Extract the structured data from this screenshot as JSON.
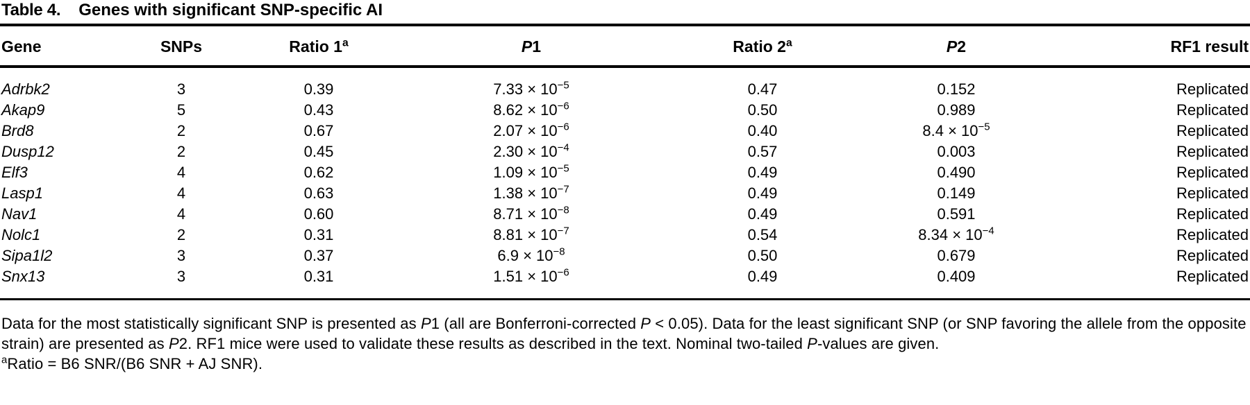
{
  "page": {
    "background": "#ffffff",
    "text_color": "#000000",
    "rule_color": "#000000"
  },
  "caption": {
    "label": "Table 4.",
    "title": "Genes with significant SNP-specific AI"
  },
  "table": {
    "headers": {
      "gene": "Gene",
      "snps": "SNPs",
      "ratio1": {
        "text": "Ratio 1",
        "sup": "a"
      },
      "p1": {
        "italic": "P",
        "rest": "1"
      },
      "ratio2": {
        "text": "Ratio 2",
        "sup": "a"
      },
      "p2": {
        "italic": "P",
        "rest": "2"
      },
      "rf1": "RF1 result"
    },
    "rows": [
      {
        "gene": "Adrbk2",
        "snps": "3",
        "ratio1": "0.39",
        "p1": {
          "text": "7.33 × 10",
          "exp": "−5"
        },
        "ratio2": "0.47",
        "p2": {
          "text": "0.152",
          "exp": ""
        },
        "rf1": "Replicated"
      },
      {
        "gene": "Akap9",
        "snps": "5",
        "ratio1": "0.43",
        "p1": {
          "text": "8.62 × 10",
          "exp": "−6"
        },
        "ratio2": "0.50",
        "p2": {
          "text": "0.989",
          "exp": ""
        },
        "rf1": "Replicated"
      },
      {
        "gene": "Brd8",
        "snps": "2",
        "ratio1": "0.67",
        "p1": {
          "text": "2.07 × 10",
          "exp": "−6"
        },
        "ratio2": "0.40",
        "p2": {
          "text": "8.4 × 10",
          "exp": "−5"
        },
        "rf1": "Replicated"
      },
      {
        "gene": "Dusp12",
        "snps": "2",
        "ratio1": "0.45",
        "p1": {
          "text": "2.30 × 10",
          "exp": "−4"
        },
        "ratio2": "0.57",
        "p2": {
          "text": "0.003",
          "exp": ""
        },
        "rf1": "Replicated"
      },
      {
        "gene": "Elf3",
        "snps": "4",
        "ratio1": "0.62",
        "p1": {
          "text": "1.09 × 10",
          "exp": "−5"
        },
        "ratio2": "0.49",
        "p2": {
          "text": "0.490",
          "exp": ""
        },
        "rf1": "Replicated"
      },
      {
        "gene": "Lasp1",
        "snps": "4",
        "ratio1": "0.63",
        "p1": {
          "text": "1.38 × 10",
          "exp": "−7"
        },
        "ratio2": "0.49",
        "p2": {
          "text": "0.149",
          "exp": ""
        },
        "rf1": "Replicated"
      },
      {
        "gene": "Nav1",
        "snps": "4",
        "ratio1": "0.60",
        "p1": {
          "text": "8.71 × 10",
          "exp": "−8"
        },
        "ratio2": "0.49",
        "p2": {
          "text": "0.591",
          "exp": ""
        },
        "rf1": "Replicated"
      },
      {
        "gene": "Nolc1",
        "snps": "2",
        "ratio1": "0.31",
        "p1": {
          "text": "8.81 × 10",
          "exp": "−7"
        },
        "ratio2": "0.54",
        "p2": {
          "text": "8.34 × 10",
          "exp": "−4"
        },
        "rf1": "Replicated"
      },
      {
        "gene": "Sipa1l2",
        "snps": "3",
        "ratio1": "0.37",
        "p1": {
          "text": "6.9 × 10",
          "exp": "−8"
        },
        "ratio2": "0.50",
        "p2": {
          "text": "0.679",
          "exp": ""
        },
        "rf1": "Replicated"
      },
      {
        "gene": "Snx13",
        "snps": "3",
        "ratio1": "0.31",
        "p1": {
          "text": "1.51 × 10",
          "exp": "−6"
        },
        "ratio2": "0.49",
        "p2": {
          "text": "0.409",
          "exp": ""
        },
        "rf1": "Replicated"
      }
    ]
  },
  "footnote": {
    "body": [
      {
        "t": "Data for the most statistically significant SNP is presented as ",
        "italic": false
      },
      {
        "t": "P",
        "italic": true
      },
      {
        "t": "1 (all are Bonferroni-corrected ",
        "italic": false
      },
      {
        "t": "P",
        "italic": true
      },
      {
        "t": " < 0.05). Data for the least significant SNP (or SNP favoring the allele from the opposite strain) are presented as ",
        "italic": false
      },
      {
        "t": "P",
        "italic": true
      },
      {
        "t": "2. RF1 mice were used to validate these results as described in the text. Nominal two-tailed ",
        "italic": false
      },
      {
        "t": "P",
        "italic": true
      },
      {
        "t": "-values are given.",
        "italic": false
      }
    ],
    "ratio_def": {
      "sup": "a",
      "text": "Ratio = B6 SNR/(B6 SNR + AJ SNR)."
    }
  }
}
